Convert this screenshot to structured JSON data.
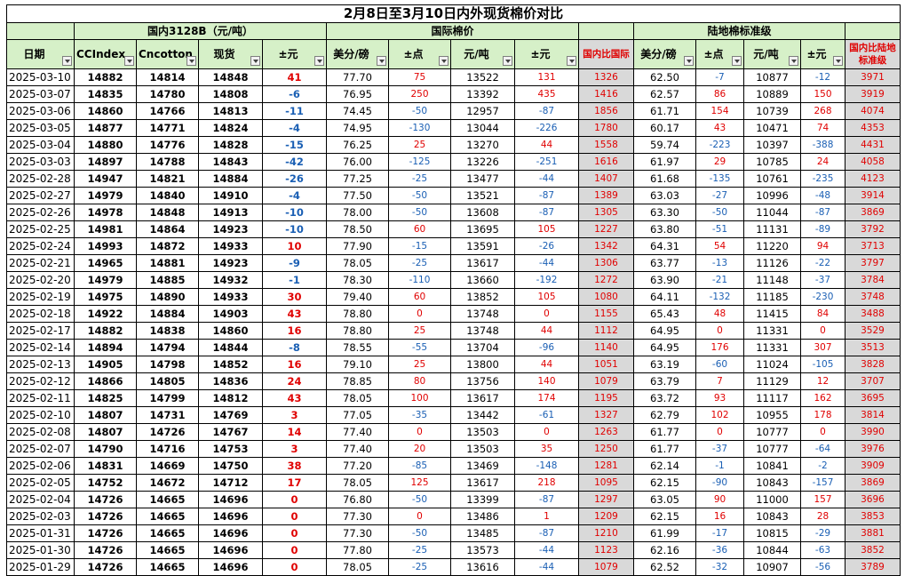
{
  "title": "2月8日至3月10日内外现货棉价对比",
  "groups": {
    "domestic": "国内3128B（元/吨）",
    "international": "国际棉价",
    "landed": "陆地棉标准级"
  },
  "headers": {
    "date": "日期",
    "ccindex": "CCIndex",
    "cncotton": "Cncotton",
    "spot": "现货",
    "pm_yuan": "±元",
    "usd_lb": "美分/磅",
    "pm_point": "±点",
    "yuan_ton": "元/吨",
    "pm_yuan2": "±元",
    "ratio_intl": "国内比国际",
    "usd_lb2": "美分/磅",
    "yuan_ton2": "元/吨",
    "pm_yuan3": "±元",
    "ratio_landed": "国内比陆地标准级"
  },
  "rows": [
    [
      "2025-03-10",
      "14882",
      "14814",
      "14848",
      "41",
      "77.70",
      "75",
      "13522",
      "131",
      "1326",
      "62.50",
      "-7",
      "10877",
      "-12",
      "3971"
    ],
    [
      "2025-03-07",
      "14835",
      "14780",
      "14808",
      "-6",
      "76.95",
      "250",
      "13392",
      "435",
      "1416",
      "62.57",
      "86",
      "10889",
      "150",
      "3919"
    ],
    [
      "2025-03-06",
      "14860",
      "14766",
      "14813",
      "-11",
      "74.45",
      "-50",
      "12957",
      "-87",
      "1856",
      "61.71",
      "154",
      "10739",
      "268",
      "4074"
    ],
    [
      "2025-03-05",
      "14877",
      "14771",
      "14824",
      "-4",
      "74.95",
      "-130",
      "13044",
      "-226",
      "1780",
      "60.17",
      "43",
      "10471",
      "74",
      "4353"
    ],
    [
      "2025-03-04",
      "14880",
      "14776",
      "14828",
      "-15",
      "76.25",
      "25",
      "13270",
      "44",
      "1558",
      "59.74",
      "-223",
      "10397",
      "-388",
      "4431"
    ],
    [
      "2025-03-03",
      "14897",
      "14788",
      "14843",
      "-42",
      "76.00",
      "-125",
      "13226",
      "-251",
      "1616",
      "61.97",
      "29",
      "10785",
      "24",
      "4058"
    ],
    [
      "2025-02-28",
      "14947",
      "14821",
      "14884",
      "-26",
      "77.25",
      "-25",
      "13477",
      "-44",
      "1407",
      "61.68",
      "-135",
      "10761",
      "-235",
      "4123"
    ],
    [
      "2025-02-27",
      "14979",
      "14840",
      "14910",
      "-4",
      "77.50",
      "-50",
      "13521",
      "-87",
      "1389",
      "63.03",
      "-27",
      "10996",
      "-48",
      "3914"
    ],
    [
      "2025-02-26",
      "14978",
      "14848",
      "14913",
      "-10",
      "78.00",
      "-50",
      "13608",
      "-87",
      "1305",
      "63.30",
      "-50",
      "11044",
      "-87",
      "3869"
    ],
    [
      "2025-02-25",
      "14981",
      "14864",
      "14923",
      "-10",
      "78.50",
      "60",
      "13695",
      "105",
      "1227",
      "63.80",
      "-51",
      "11131",
      "-89",
      "3792"
    ],
    [
      "2025-02-24",
      "14993",
      "14872",
      "14933",
      "10",
      "77.90",
      "-15",
      "13591",
      "-26",
      "1342",
      "64.31",
      "54",
      "11220",
      "94",
      "3713"
    ],
    [
      "2025-02-21",
      "14965",
      "14881",
      "14923",
      "-9",
      "78.05",
      "-25",
      "13617",
      "-44",
      "1306",
      "63.77",
      "-13",
      "11126",
      "-22",
      "3797"
    ],
    [
      "2025-02-20",
      "14979",
      "14885",
      "14932",
      "-1",
      "78.30",
      "-110",
      "13660",
      "-192",
      "1272",
      "63.90",
      "-21",
      "11148",
      "-37",
      "3784"
    ],
    [
      "2025-02-19",
      "14975",
      "14890",
      "14933",
      "30",
      "79.40",
      "60",
      "13852",
      "105",
      "1080",
      "64.11",
      "-132",
      "11185",
      "-230",
      "3748"
    ],
    [
      "2025-02-18",
      "14922",
      "14884",
      "14903",
      "43",
      "78.80",
      "0",
      "13748",
      "0",
      "1155",
      "65.43",
      "48",
      "11415",
      "84",
      "3488"
    ],
    [
      "2025-02-17",
      "14882",
      "14838",
      "14860",
      "16",
      "78.80",
      "25",
      "13748",
      "44",
      "1112",
      "64.95",
      "0",
      "11331",
      "0",
      "3529"
    ],
    [
      "2025-02-14",
      "14894",
      "14794",
      "14844",
      "-8",
      "78.55",
      "-55",
      "13704",
      "-96",
      "1140",
      "64.95",
      "176",
      "11331",
      "307",
      "3513"
    ],
    [
      "2025-02-13",
      "14905",
      "14798",
      "14852",
      "16",
      "79.10",
      "25",
      "13800",
      "44",
      "1051",
      "63.19",
      "-60",
      "11024",
      "-105",
      "3828"
    ],
    [
      "2025-02-12",
      "14866",
      "14805",
      "14836",
      "24",
      "78.85",
      "80",
      "13756",
      "140",
      "1079",
      "63.79",
      "7",
      "11129",
      "12",
      "3707"
    ],
    [
      "2025-02-11",
      "14825",
      "14799",
      "14812",
      "43",
      "78.05",
      "100",
      "13617",
      "174",
      "1195",
      "63.72",
      "93",
      "11117",
      "162",
      "3695"
    ],
    [
      "2025-02-10",
      "14807",
      "14731",
      "14769",
      "3",
      "77.05",
      "-35",
      "13442",
      "-61",
      "1327",
      "62.79",
      "102",
      "10955",
      "178",
      "3814"
    ],
    [
      "2025-02-08",
      "14807",
      "14726",
      "14767",
      "14",
      "77.40",
      "0",
      "13503",
      "0",
      "1263",
      "61.77",
      "0",
      "10777",
      "0",
      "3990"
    ],
    [
      "2025-02-07",
      "14790",
      "14716",
      "14753",
      "3",
      "77.40",
      "20",
      "13503",
      "35",
      "1250",
      "61.77",
      "-37",
      "10777",
      "-64",
      "3976"
    ],
    [
      "2025-02-06",
      "14831",
      "14669",
      "14750",
      "38",
      "77.20",
      "-85",
      "13469",
      "-148",
      "1281",
      "62.14",
      "-1",
      "10841",
      "-2",
      "3909"
    ],
    [
      "2025-02-05",
      "14752",
      "14672",
      "14712",
      "17",
      "78.05",
      "125",
      "13617",
      "218",
      "1095",
      "62.15",
      "-90",
      "10843",
      "-157",
      "3869"
    ],
    [
      "2025-02-04",
      "14726",
      "14665",
      "14696",
      "0",
      "76.80",
      "-50",
      "13399",
      "-87",
      "1297",
      "63.05",
      "90",
      "11000",
      "157",
      "3696"
    ],
    [
      "2025-02-03",
      "14726",
      "14665",
      "14696",
      "0",
      "77.30",
      "0",
      "13486",
      "1",
      "1209",
      "62.15",
      "16",
      "10843",
      "28",
      "3853"
    ],
    [
      "2025-01-31",
      "14726",
      "14665",
      "14696",
      "0",
      "77.30",
      "-50",
      "13485",
      "-87",
      "1210",
      "61.99",
      "-17",
      "10815",
      "-29",
      "3881"
    ],
    [
      "2025-01-30",
      "14726",
      "14665",
      "14696",
      "0",
      "77.80",
      "-25",
      "13573",
      "-44",
      "1123",
      "62.16",
      "-36",
      "10844",
      "-63",
      "3852"
    ],
    [
      "2025-01-29",
      "14726",
      "14665",
      "14696",
      "0",
      "78.05",
      "-25",
      "13616",
      "-44",
      "1079",
      "62.52",
      "-32",
      "10907",
      "-56",
      "3789"
    ]
  ],
  "colors": {
    "header_bg": "#d6f0c8",
    "ratio_bg": "#d9d9d9",
    "positive": "#e00000",
    "negative": "#1a5fb4"
  }
}
